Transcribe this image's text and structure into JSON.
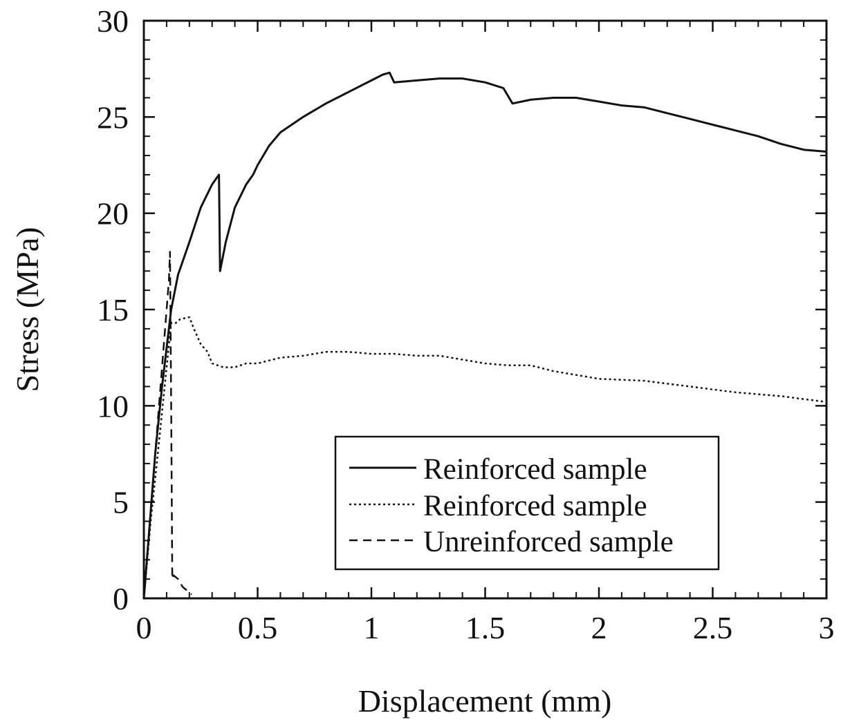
{
  "chart_data": {
    "type": "line",
    "title": "",
    "xlabel": "Displacement (mm)",
    "ylabel": "Stress (MPa)",
    "xlim": [
      0,
      3
    ],
    "ylim": [
      0,
      30
    ],
    "xticks": [
      0,
      0.5,
      1,
      1.5,
      2,
      2.5,
      3
    ],
    "xtick_labels": [
      "0",
      "0.5",
      "1",
      "1.5",
      "2",
      "2.5",
      "3"
    ],
    "yticks": [
      0,
      5,
      10,
      15,
      20,
      25,
      30
    ],
    "ytick_labels": [
      "0",
      "5",
      "10",
      "15",
      "20",
      "25",
      "30"
    ],
    "grid": false,
    "legend_position": "bottom-right",
    "series": [
      {
        "name": "Reinforced sample",
        "style": "solid",
        "color": "#111111",
        "x": [
          0,
          0.02,
          0.05,
          0.08,
          0.1,
          0.12,
          0.15,
          0.2,
          0.25,
          0.3,
          0.33,
          0.335,
          0.36,
          0.4,
          0.45,
          0.48,
          0.5,
          0.55,
          0.6,
          0.7,
          0.8,
          0.9,
          1.0,
          1.05,
          1.08,
          1.1,
          1.2,
          1.3,
          1.4,
          1.5,
          1.58,
          1.62,
          1.7,
          1.8,
          1.9,
          2.0,
          2.1,
          2.2,
          2.3,
          2.4,
          2.5,
          2.6,
          2.7,
          2.8,
          2.9,
          3.0
        ],
        "y": [
          0,
          3,
          7.5,
          11,
          13,
          15,
          16.8,
          18.5,
          20.3,
          21.5,
          22,
          17,
          18.5,
          20.3,
          21.5,
          22,
          22.5,
          23.5,
          24.2,
          25,
          25.7,
          26.3,
          26.9,
          27.2,
          27.3,
          26.8,
          26.9,
          27.0,
          27.0,
          26.8,
          26.5,
          25.7,
          25.9,
          26.0,
          26.0,
          25.8,
          25.6,
          25.5,
          25.2,
          24.9,
          24.6,
          24.3,
          24.0,
          23.6,
          23.3,
          23.2
        ]
      },
      {
        "name": "Reinforced sample",
        "style": "dotted",
        "color": "#111111",
        "x": [
          0,
          0.03,
          0.07,
          0.1,
          0.12,
          0.14,
          0.16,
          0.2,
          0.22,
          0.25,
          0.28,
          0.3,
          0.35,
          0.4,
          0.45,
          0.5,
          0.6,
          0.7,
          0.8,
          0.9,
          1.0,
          1.1,
          1.2,
          1.3,
          1.4,
          1.5,
          1.6,
          1.7,
          1.8,
          1.9,
          2.0,
          2.2,
          2.4,
          2.6,
          2.8,
          3.0
        ],
        "y": [
          0,
          4,
          8.5,
          12,
          14.3,
          14.3,
          14.5,
          14.6,
          14,
          13.2,
          12.8,
          12.2,
          12.0,
          12.0,
          12.2,
          12.2,
          12.5,
          12.6,
          12.8,
          12.8,
          12.7,
          12.7,
          12.6,
          12.6,
          12.4,
          12.2,
          12.1,
          12.1,
          11.8,
          11.6,
          11.4,
          11.3,
          11.0,
          10.7,
          10.5,
          10.2
        ]
      },
      {
        "name": "Unreinforced sample",
        "style": "dashed",
        "color": "#111111",
        "x": [
          0,
          0.03,
          0.06,
          0.09,
          0.11,
          0.115,
          0.12,
          0.125,
          0.13,
          0.14,
          0.15,
          0.17,
          0.19,
          0.21
        ],
        "y": [
          0,
          4.5,
          9,
          13.5,
          16.5,
          18,
          10,
          1,
          1.2,
          1.1,
          1.0,
          0.6,
          0.4,
          0.2
        ]
      }
    ]
  }
}
